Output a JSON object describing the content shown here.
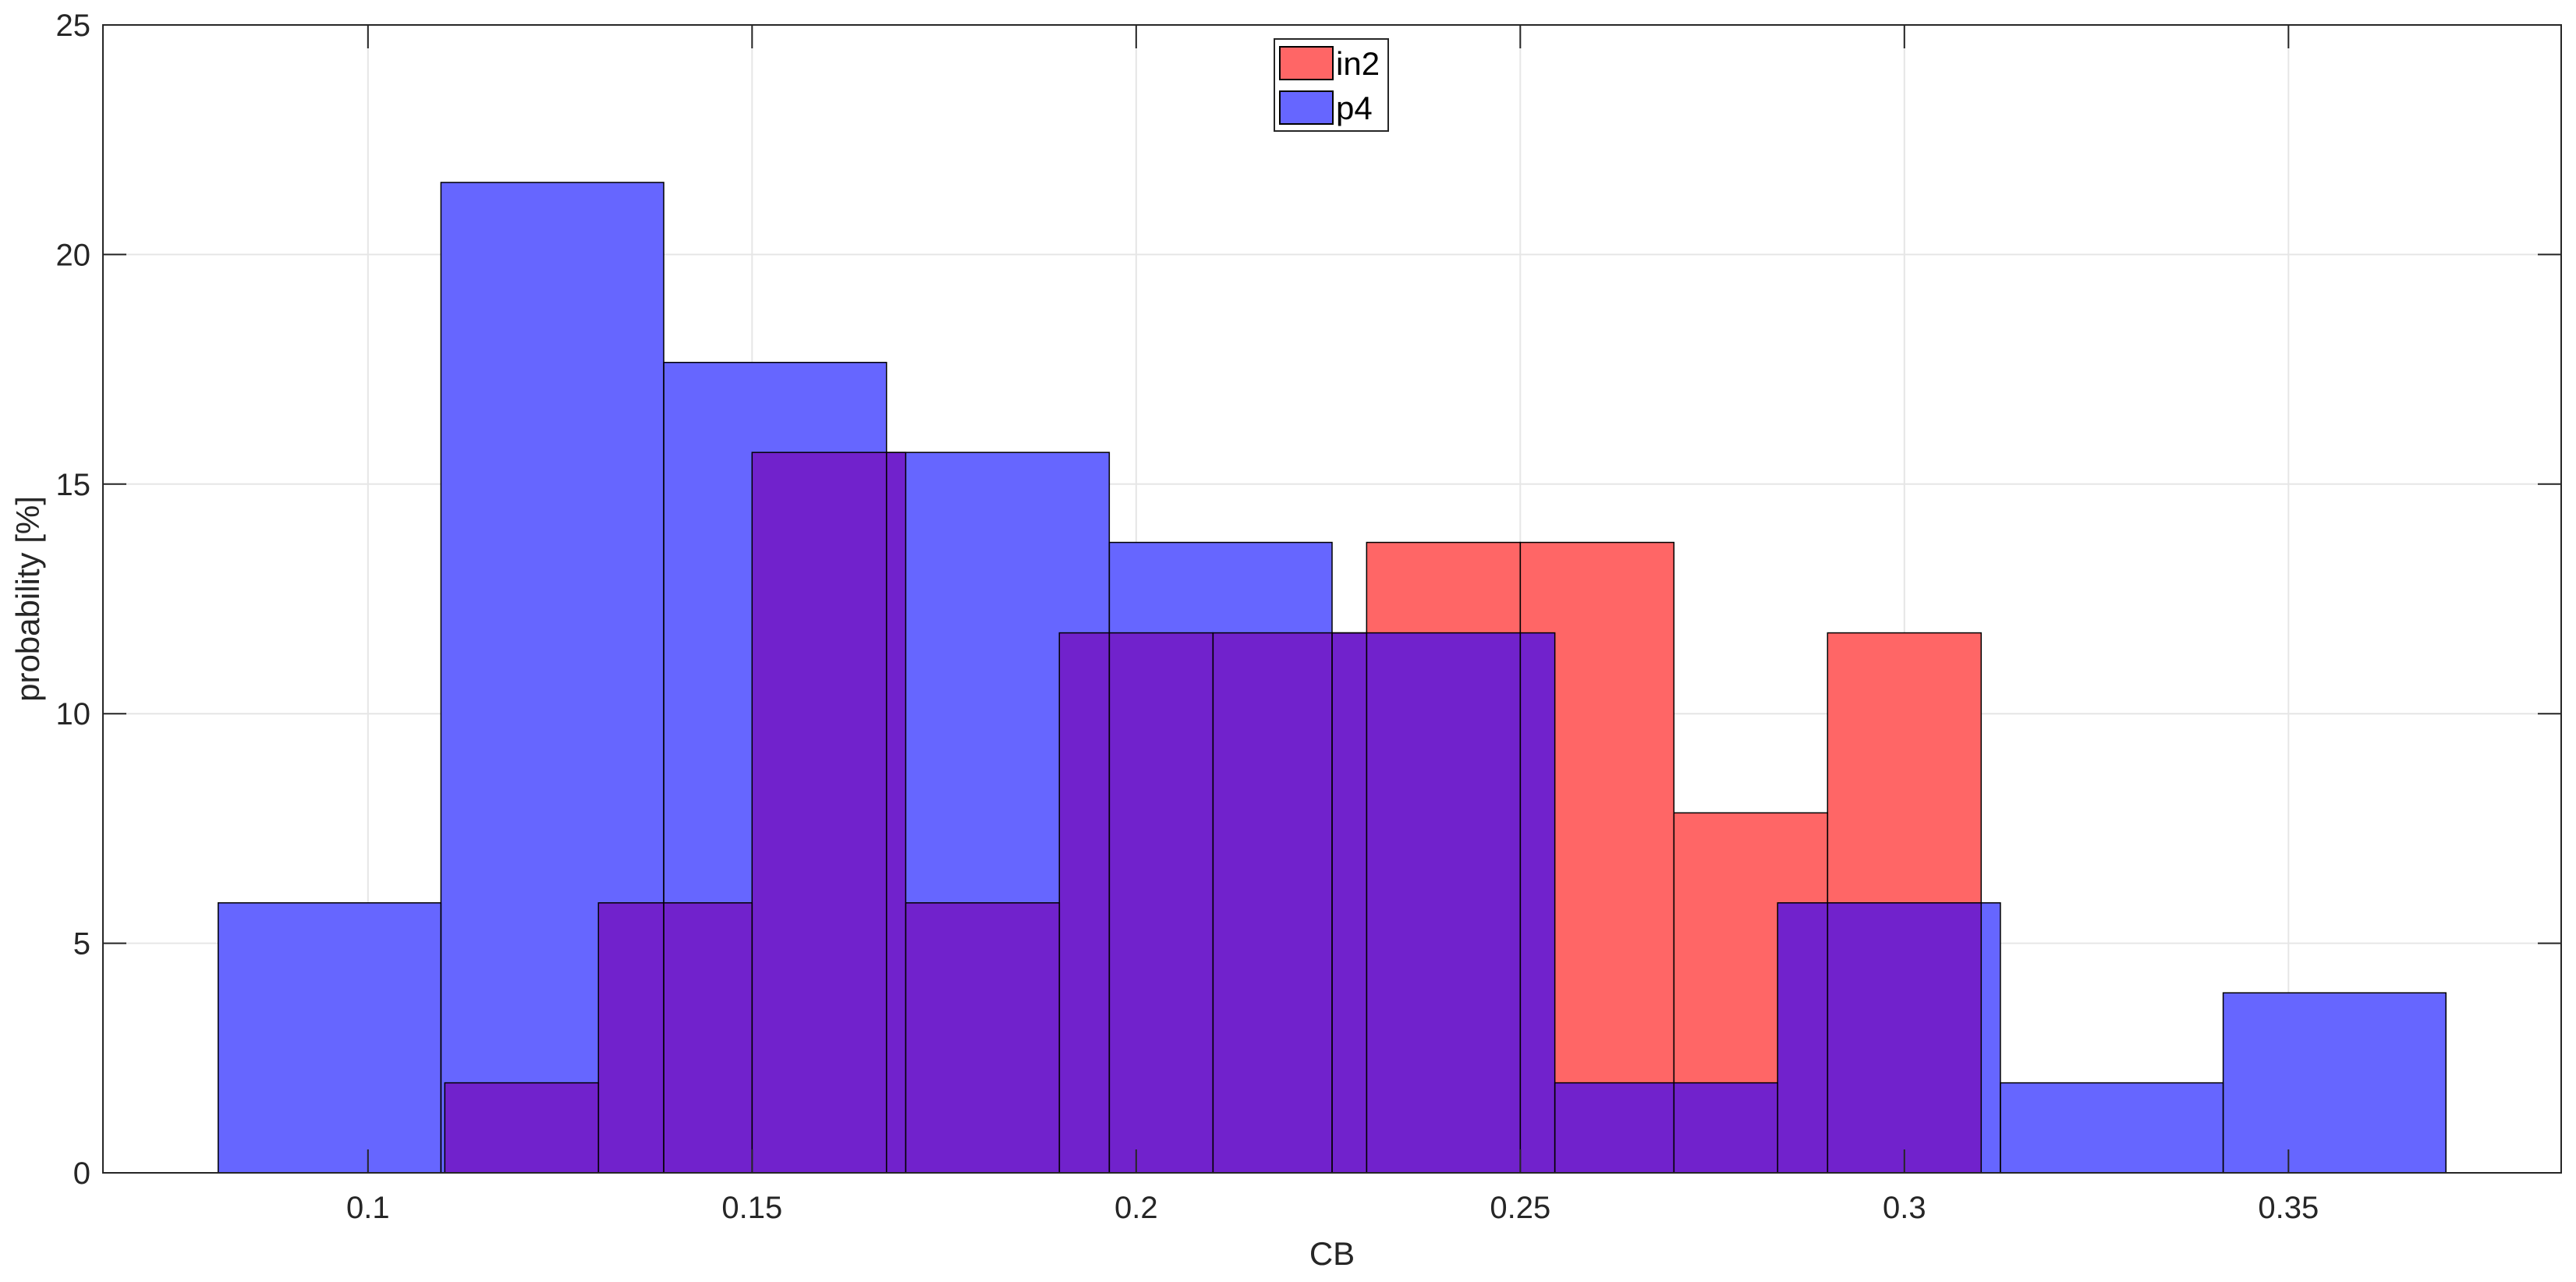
{
  "chart_data": {
    "type": "histogram",
    "title": "",
    "xlabel": "CB",
    "ylabel": "probability [%]",
    "xlim": [
      0.0655,
      0.3855
    ],
    "ylim": [
      0,
      25
    ],
    "xticks": [
      0.1,
      0.15,
      0.2,
      0.25,
      0.3,
      0.35
    ],
    "xtick_labels": [
      "0.1",
      "0.15",
      "0.2",
      "0.25",
      "0.3",
      "0.35"
    ],
    "yticks": [
      0,
      5,
      10,
      15,
      20,
      25
    ],
    "ytick_labels": [
      "0",
      "5",
      "10",
      "15",
      "20",
      "25"
    ],
    "grid": true,
    "legend_position": "top-center",
    "colors": {
      "in2": "#ff6666",
      "p4": "#6666ff",
      "overlap": "#7122cc",
      "edge": "#000000",
      "grid": "#e6e6e6"
    },
    "series": [
      {
        "name": "in2",
        "bin_edges": [
          0.11,
          0.13,
          0.15,
          0.17,
          0.19,
          0.21,
          0.23,
          0.25,
          0.27,
          0.29,
          0.31
        ],
        "values": [
          1.96,
          5.88,
          15.69,
          5.88,
          11.76,
          11.76,
          13.73,
          13.73,
          7.84,
          11.76
        ]
      },
      {
        "name": "p4",
        "bin_edges": [
          0.0805,
          0.1095,
          0.1385,
          0.1675,
          0.1965,
          0.2255,
          0.2545,
          0.2835,
          0.3125,
          0.3415,
          0.3705
        ],
        "values": [
          5.88,
          21.57,
          17.65,
          15.69,
          13.73,
          11.76,
          1.96,
          5.88,
          1.96,
          3.92
        ]
      }
    ]
  }
}
